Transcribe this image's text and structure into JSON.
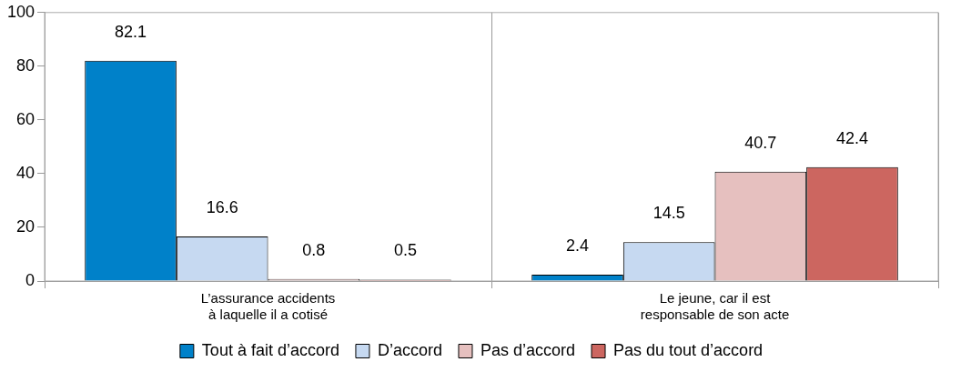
{
  "chart_data": {
    "type": "bar",
    "categories": [
      "L’assurance accidents\nà laquelle il a cotisé",
      "Le jeune, car il est\nresponsable de son acte"
    ],
    "series": [
      {
        "name": "Tout à fait d’accord",
        "color": "#0081c9",
        "values": [
          82.1,
          2.4
        ]
      },
      {
        "name": "D’accord",
        "color": "#c6d9f1",
        "values": [
          16.6,
          14.5
        ]
      },
      {
        "name": "Pas d’accord",
        "color": "#e6c0bf",
        "values": [
          0.8,
          40.7
        ]
      },
      {
        "name": "Pas du tout d’accord",
        "color": "#cc6660",
        "values": [
          0.5,
          42.4
        ]
      }
    ],
    "ylim": [
      0,
      100
    ],
    "yticks": [
      0,
      20,
      40,
      60,
      80,
      100
    ],
    "grid": "x",
    "legend": "bottom",
    "data_labels": true
  }
}
